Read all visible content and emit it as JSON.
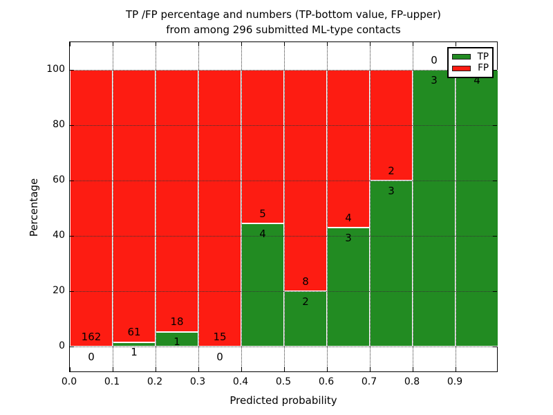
{
  "title": {
    "line1": "TP /FP percentage and numbers (TP-bottom value, FP-upper)",
    "line2": "from among 296 submitted ML-type contacts"
  },
  "chart_data": {
    "type": "bar",
    "stacked": true,
    "title": "TP /FP percentage and numbers (TP-bottom value, FP-upper) from among 296 submitted ML-type contacts",
    "xlabel": "Predicted probability",
    "ylabel": "Percentage",
    "x_ticks": [
      "0.0",
      "0.1",
      "0.2",
      "0.3",
      "0.4",
      "0.5",
      "0.6",
      "0.7",
      "0.8",
      "0.9"
    ],
    "y_ticks": [
      0,
      20,
      40,
      60,
      80,
      100
    ],
    "xlim": [
      0.0,
      1.0
    ],
    "ylim": [
      -9.5,
      110
    ],
    "bin_width": 0.1,
    "total_contacts": 296,
    "grid": true,
    "legend_position": "upper right",
    "legend": [
      {
        "label": "TP",
        "color": "#228b22"
      },
      {
        "label": "FP",
        "color": "#fd1c12"
      }
    ],
    "colors": {
      "tp": "#228b22",
      "fp": "#fd1c12",
      "grid": "#333333",
      "bar_edge": "#ffffff",
      "spine": "#000000"
    },
    "bins": [
      {
        "x_start": 0.0,
        "x_end": 0.1,
        "tp": 0,
        "fp": 162,
        "tp_pct": 0.0
      },
      {
        "x_start": 0.1,
        "x_end": 0.2,
        "tp": 1,
        "fp": 61,
        "tp_pct": 1.6
      },
      {
        "x_start": 0.2,
        "x_end": 0.3,
        "tp": 1,
        "fp": 18,
        "tp_pct": 5.3
      },
      {
        "x_start": 0.3,
        "x_end": 0.4,
        "tp": 0,
        "fp": 15,
        "tp_pct": 0.0
      },
      {
        "x_start": 0.4,
        "x_end": 0.5,
        "tp": 4,
        "fp": 5,
        "tp_pct": 44.4
      },
      {
        "x_start": 0.5,
        "x_end": 0.6,
        "tp": 2,
        "fp": 8,
        "tp_pct": 20.0
      },
      {
        "x_start": 0.6,
        "x_end": 0.7,
        "tp": 3,
        "fp": 4,
        "tp_pct": 42.9
      },
      {
        "x_start": 0.7,
        "x_end": 0.8,
        "tp": 3,
        "fp": 2,
        "tp_pct": 60.0
      },
      {
        "x_start": 0.8,
        "x_end": 0.9,
        "tp": 3,
        "fp": 0,
        "tp_pct": 100.0
      },
      {
        "x_start": 0.9,
        "x_end": 1.0,
        "tp": 4,
        "fp": 0,
        "tp_pct": 100.0
      }
    ]
  }
}
